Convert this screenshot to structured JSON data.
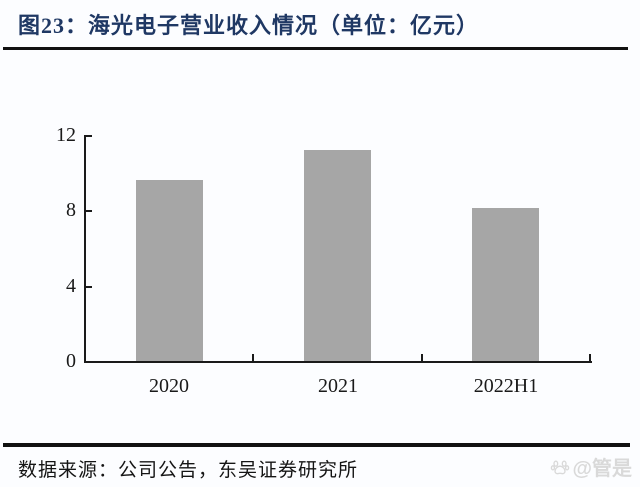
{
  "header": {
    "title": "图23：海光电子营业收入情况（单位：亿元）"
  },
  "chart_data": {
    "type": "bar",
    "categories": [
      "2020",
      "2021",
      "2022H1"
    ],
    "values": [
      9.6,
      11.2,
      8.1
    ],
    "title": "图23：海光电子营业收入情况（单位：亿元）",
    "xlabel": "",
    "ylabel": "",
    "unit": "亿元",
    "ylim": [
      0,
      12
    ],
    "yticks": [
      0,
      4,
      8,
      12
    ],
    "grid": false,
    "legend": "none",
    "bar_color": "#A6A6A6"
  },
  "footer": {
    "source_text": "数据来源：公司公告，东吴证券研究所",
    "watermark_text": "@管是"
  },
  "colors": {
    "title": "#1F3864",
    "axis": "#1a1a1a",
    "bar": "#A6A6A6",
    "rule": "#111111",
    "watermark": "#D9D9D9"
  }
}
